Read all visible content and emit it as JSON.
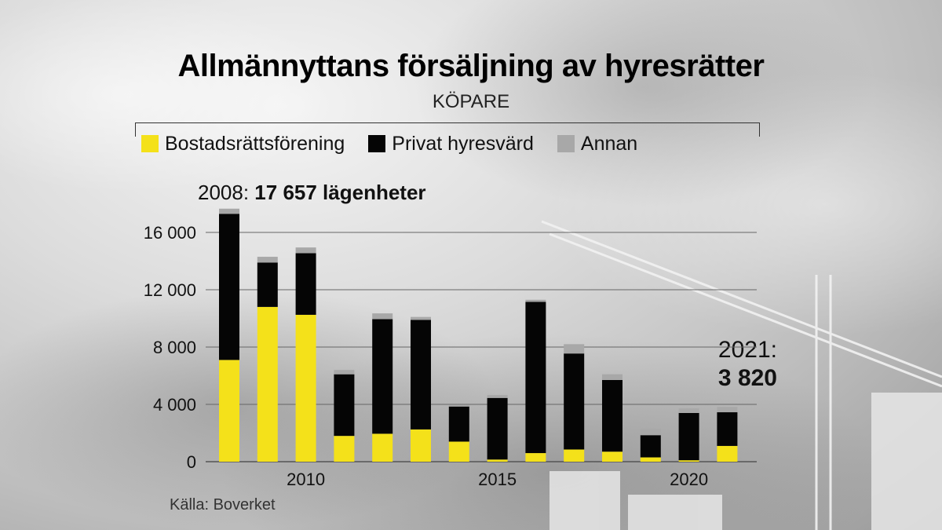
{
  "chart_data": {
    "type": "bar",
    "stacked": true,
    "title": "Allmännyttans försäljning av hyresrätter",
    "subtitle": "KÖPARE",
    "x": [
      2008,
      2009,
      2010,
      2011,
      2012,
      2013,
      2014,
      2015,
      2016,
      2017,
      2018,
      2019,
      2020,
      2021
    ],
    "x_ticks": [
      {
        "value": 2010,
        "label": "2010"
      },
      {
        "value": 2015,
        "label": "2015"
      },
      {
        "value": 2020,
        "label": "2020"
      }
    ],
    "y_ticks": [
      {
        "value": 0,
        "label": "0"
      },
      {
        "value": 4000,
        "label": "4 000"
      },
      {
        "value": 8000,
        "label": "8 000"
      },
      {
        "value": 12000,
        "label": "12 000"
      },
      {
        "value": 16000,
        "label": "16 000"
      }
    ],
    "ylim": [
      0,
      17657
    ],
    "grid": true,
    "series": [
      {
        "name": "Bostadsrättsförening",
        "color": "#f4e11a",
        "values": [
          7100,
          10800,
          10250,
          1800,
          1950,
          2250,
          1400,
          150,
          600,
          850,
          700,
          300,
          100,
          1100
        ]
      },
      {
        "name": "Privat hyresvärd",
        "color": "#050505",
        "values": [
          10200,
          3100,
          4300,
          4300,
          8000,
          7650,
          2450,
          4300,
          10550,
          6700,
          5000,
          1550,
          3300,
          2350
        ]
      },
      {
        "name": "Annan",
        "color": "#a8a8a8",
        "values": [
          357,
          400,
          400,
          300,
          400,
          200,
          100,
          200,
          150,
          650,
          400,
          450,
          320,
          370
        ]
      }
    ],
    "legend_position": "top",
    "annotations": {
      "first_prefix": "2008: ",
      "first_value": "17 657 lägenheter",
      "last_year": "2021:",
      "last_value": "3 820"
    },
    "source": "Källa: Boverket"
  }
}
